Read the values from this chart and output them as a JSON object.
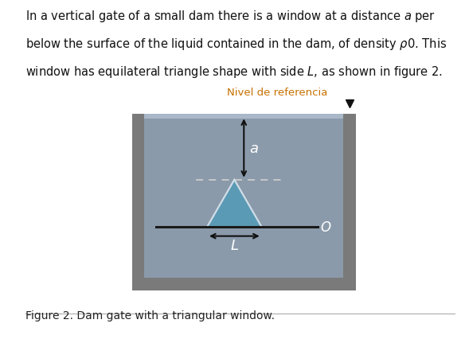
{
  "bg_color": "#ffffff",
  "dam_outer_color": "#7a7a7a",
  "water_color": "#8a9aaa",
  "water_surface_color": "#a8b8c8",
  "triangle_fill_color": "#5b9ab5",
  "triangle_edge_color": "#d0dde8",
  "horizontal_line_color": "#1a1a1a",
  "dashed_line_color": "#cccccc",
  "arrow_color": "#111111",
  "label_a": "a",
  "label_L": "L",
  "label_O": "O",
  "label_nivel": "Nivel de referencia",
  "caption": "Figure 2. Dam gate with a triangular window.",
  "caption_fontsize": 10,
  "text_fontsize": 10.5
}
